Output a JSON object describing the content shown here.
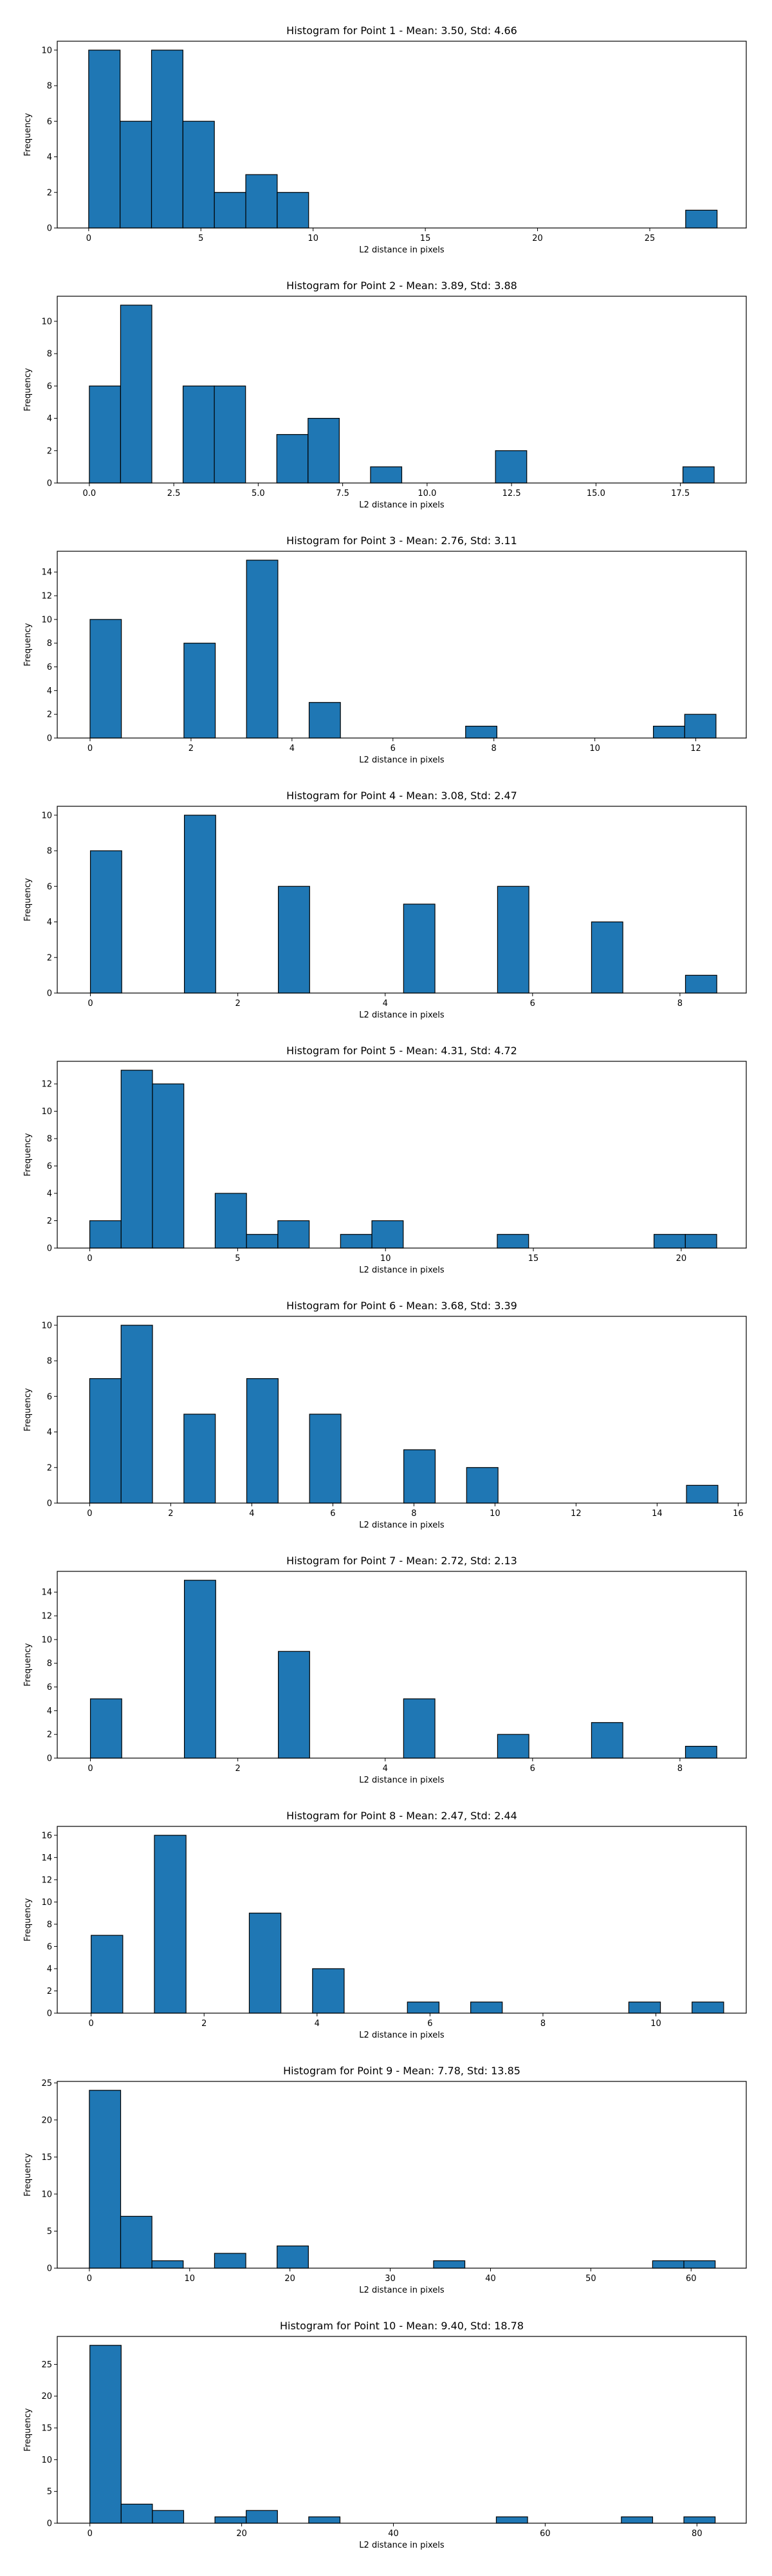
{
  "bar_color": "#1f77b4",
  "edge_color": "#000000",
  "chart_data": [
    {
      "type": "bar",
      "title": "Histogram for Point 1 - Mean: 3.50, Std: 4.66",
      "xlabel": "L2 distance in pixels",
      "ylabel": "Frequency",
      "xlim": [
        -1.4,
        29.3
      ],
      "ylim": [
        0,
        10.5
      ],
      "xticks": [
        0,
        5,
        10,
        15,
        20,
        25
      ],
      "yticks": [
        0,
        2,
        4,
        6,
        8,
        10
      ],
      "xtick_labels": [
        "0",
        "5",
        "10",
        "15",
        "20",
        "25"
      ],
      "ytick_labels": [
        "0",
        "2",
        "4",
        "6",
        "8",
        "10"
      ],
      "bin_start": 0.0,
      "bin_width": 1.4,
      "counts": [
        10,
        6,
        10,
        6,
        2,
        3,
        2,
        0,
        0,
        0,
        0,
        0,
        0,
        0,
        0,
        0,
        0,
        0,
        0,
        1
      ]
    },
    {
      "type": "bar",
      "title": "Histogram for Point 2 - Mean: 3.89, Std: 3.88",
      "xlabel": "L2 distance in pixels",
      "ylabel": "Frequency",
      "xlim": [
        -0.95,
        19.45
      ],
      "ylim": [
        0,
        11.55
      ],
      "xticks": [
        0,
        2.5,
        5,
        7.5,
        10,
        12.5,
        15,
        17.5
      ],
      "yticks": [
        0,
        2,
        4,
        6,
        8,
        10
      ],
      "xtick_labels": [
        "0.0",
        "2.5",
        "5.0",
        "7.5",
        "10.0",
        "12.5",
        "15.0",
        "17.5"
      ],
      "ytick_labels": [
        "0",
        "2",
        "4",
        "6",
        "8",
        "10"
      ],
      "bin_start": 0.0,
      "bin_width": 0.925,
      "counts": [
        6,
        11,
        0,
        6,
        6,
        0,
        3,
        4,
        0,
        1,
        0,
        0,
        0,
        2,
        0,
        0,
        0,
        0,
        0,
        1
      ]
    },
    {
      "type": "bar",
      "title": "Histogram for Point 3 - Mean: 2.76, Std: 3.11",
      "xlabel": "L2 distance in pixels",
      "ylabel": "Frequency",
      "xlim": [
        -0.65,
        13.0
      ],
      "ylim": [
        0,
        15.75
      ],
      "xticks": [
        0,
        2,
        4,
        6,
        8,
        10,
        12
      ],
      "yticks": [
        0,
        2,
        4,
        6,
        8,
        10,
        12,
        14
      ],
      "xtick_labels": [
        "0",
        "2",
        "4",
        "6",
        "8",
        "10",
        "12"
      ],
      "ytick_labels": [
        "0",
        "2",
        "4",
        "6",
        "8",
        "10",
        "12",
        "14"
      ],
      "bin_start": 0.0,
      "bin_width": 0.62,
      "counts": [
        10,
        0,
        0,
        8,
        0,
        15,
        0,
        3,
        0,
        0,
        0,
        0,
        1,
        0,
        0,
        0,
        0,
        0,
        1,
        2
      ]
    },
    {
      "type": "bar",
      "title": "Histogram for Point 4 - Mean: 3.08, Std: 2.47",
      "xlabel": "L2 distance in pixels",
      "ylabel": "Frequency",
      "xlim": [
        -0.45,
        8.9
      ],
      "ylim": [
        0,
        10.5
      ],
      "xticks": [
        0,
        2,
        4,
        6,
        8
      ],
      "yticks": [
        0,
        2,
        4,
        6,
        8,
        10
      ],
      "xtick_labels": [
        "0",
        "2",
        "4",
        "6",
        "8"
      ],
      "ytick_labels": [
        "0",
        "2",
        "4",
        "6",
        "8",
        "10"
      ],
      "bin_start": 0.0,
      "bin_width": 0.425,
      "counts": [
        8,
        0,
        0,
        10,
        0,
        0,
        6,
        0,
        0,
        0,
        5,
        0,
        0,
        6,
        0,
        0,
        4,
        0,
        0,
        1
      ]
    },
    {
      "type": "bar",
      "title": "Histogram for Point 5 - Mean: 4.31, Std: 4.72",
      "xlabel": "L2 distance in pixels",
      "ylabel": "Frequency",
      "xlim": [
        -1.1,
        22.2
      ],
      "ylim": [
        0,
        13.65
      ],
      "xticks": [
        0,
        5,
        10,
        15,
        20
      ],
      "yticks": [
        0,
        2,
        4,
        6,
        8,
        10,
        12
      ],
      "xtick_labels": [
        "0",
        "5",
        "10",
        "15",
        "20"
      ],
      "ytick_labels": [
        "0",
        "2",
        "4",
        "6",
        "8",
        "10",
        "12"
      ],
      "bin_start": 0.0,
      "bin_width": 1.06,
      "counts": [
        2,
        13,
        12,
        0,
        4,
        1,
        2,
        0,
        1,
        2,
        0,
        0,
        0,
        1,
        0,
        0,
        0,
        0,
        1,
        1
      ]
    },
    {
      "type": "bar",
      "title": "Histogram for Point 6 - Mean: 3.68, Std: 3.39",
      "xlabel": "L2 distance in pixels",
      "ylabel": "Frequency",
      "xlim": [
        -0.8,
        16.2
      ],
      "ylim": [
        0,
        10.5
      ],
      "xticks": [
        0,
        2,
        4,
        6,
        8,
        10,
        12,
        14,
        16
      ],
      "yticks": [
        0,
        2,
        4,
        6,
        8,
        10
      ],
      "xtick_labels": [
        "0",
        "2",
        "4",
        "6",
        "8",
        "10",
        "12",
        "14",
        "16"
      ],
      "ytick_labels": [
        "0",
        "2",
        "4",
        "6",
        "8",
        "10"
      ],
      "bin_start": 0.0,
      "bin_width": 0.775,
      "counts": [
        7,
        10,
        0,
        5,
        0,
        7,
        0,
        5,
        0,
        0,
        3,
        0,
        2,
        0,
        0,
        0,
        0,
        0,
        0,
        1
      ]
    },
    {
      "type": "bar",
      "title": "Histogram for Point 7 - Mean: 2.72, Std: 2.13",
      "xlabel": "L2 distance in pixels",
      "ylabel": "Frequency",
      "xlim": [
        -0.45,
        8.9
      ],
      "ylim": [
        0,
        15.75
      ],
      "xticks": [
        0,
        2,
        4,
        6,
        8
      ],
      "yticks": [
        0,
        2,
        4,
        6,
        8,
        10,
        12,
        14
      ],
      "xtick_labels": [
        "0",
        "2",
        "4",
        "6",
        "8"
      ],
      "ytick_labels": [
        "0",
        "2",
        "4",
        "6",
        "8",
        "10",
        "12",
        "14"
      ],
      "bin_start": 0.0,
      "bin_width": 0.425,
      "counts": [
        5,
        0,
        0,
        15,
        0,
        0,
        9,
        0,
        0,
        0,
        5,
        0,
        0,
        2,
        0,
        0,
        3,
        0,
        0,
        1
      ]
    },
    {
      "type": "bar",
      "title": "Histogram for Point 8 - Mean: 2.47, Std: 2.44",
      "xlabel": "L2 distance in pixels",
      "ylabel": "Frequency",
      "xlim": [
        -0.6,
        11.6
      ],
      "ylim": [
        0,
        16.8
      ],
      "xticks": [
        0,
        2,
        4,
        6,
        8,
        10
      ],
      "yticks": [
        0,
        2,
        4,
        6,
        8,
        10,
        12,
        14,
        16
      ],
      "xtick_labels": [
        "0",
        "2",
        "4",
        "6",
        "8",
        "10"
      ],
      "ytick_labels": [
        "0",
        "2",
        "4",
        "6",
        "8",
        "10",
        "12",
        "14",
        "16"
      ],
      "bin_start": 0.0,
      "bin_width": 0.56,
      "counts": [
        7,
        0,
        16,
        0,
        0,
        9,
        0,
        4,
        0,
        0,
        1,
        0,
        1,
        0,
        0,
        0,
        0,
        1,
        0,
        1
      ]
    },
    {
      "type": "bar",
      "title": "Histogram for Point 9 - Mean: 7.78, Std: 13.85",
      "xlabel": "L2 distance in pixels",
      "ylabel": "Frequency",
      "xlim": [
        -3.2,
        65.5
      ],
      "ylim": [
        0,
        25.2
      ],
      "xticks": [
        0,
        10,
        20,
        30,
        40,
        50,
        60
      ],
      "yticks": [
        0,
        5,
        10,
        15,
        20,
        25
      ],
      "xtick_labels": [
        "0",
        "10",
        "20",
        "30",
        "40",
        "50",
        "60"
      ],
      "ytick_labels": [
        "0",
        "5",
        "10",
        "15",
        "20",
        "25"
      ],
      "bin_start": 0.0,
      "bin_width": 3.12,
      "counts": [
        24,
        7,
        1,
        0,
        2,
        0,
        3,
        0,
        0,
        0,
        0,
        1,
        0,
        0,
        0,
        0,
        0,
        0,
        1,
        1
      ]
    },
    {
      "type": "bar",
      "title": "Histogram for Point 10 - Mean: 9.40, Std: 18.78",
      "xlabel": "L2 distance in pixels",
      "ylabel": "Frequency",
      "xlim": [
        -4.3,
        86.5
      ],
      "ylim": [
        0,
        29.4
      ],
      "xticks": [
        0,
        20,
        40,
        60,
        80
      ],
      "yticks": [
        0,
        5,
        10,
        15,
        20,
        25
      ],
      "xtick_labels": [
        "0",
        "20",
        "40",
        "60",
        "80"
      ],
      "ytick_labels": [
        "0",
        "5",
        "10",
        "15",
        "20",
        "25"
      ],
      "bin_start": 0.0,
      "bin_width": 4.12,
      "counts": [
        28,
        3,
        2,
        0,
        1,
        2,
        0,
        1,
        0,
        0,
        0,
        0,
        0,
        1,
        0,
        0,
        0,
        1,
        0,
        1
      ]
    }
  ]
}
